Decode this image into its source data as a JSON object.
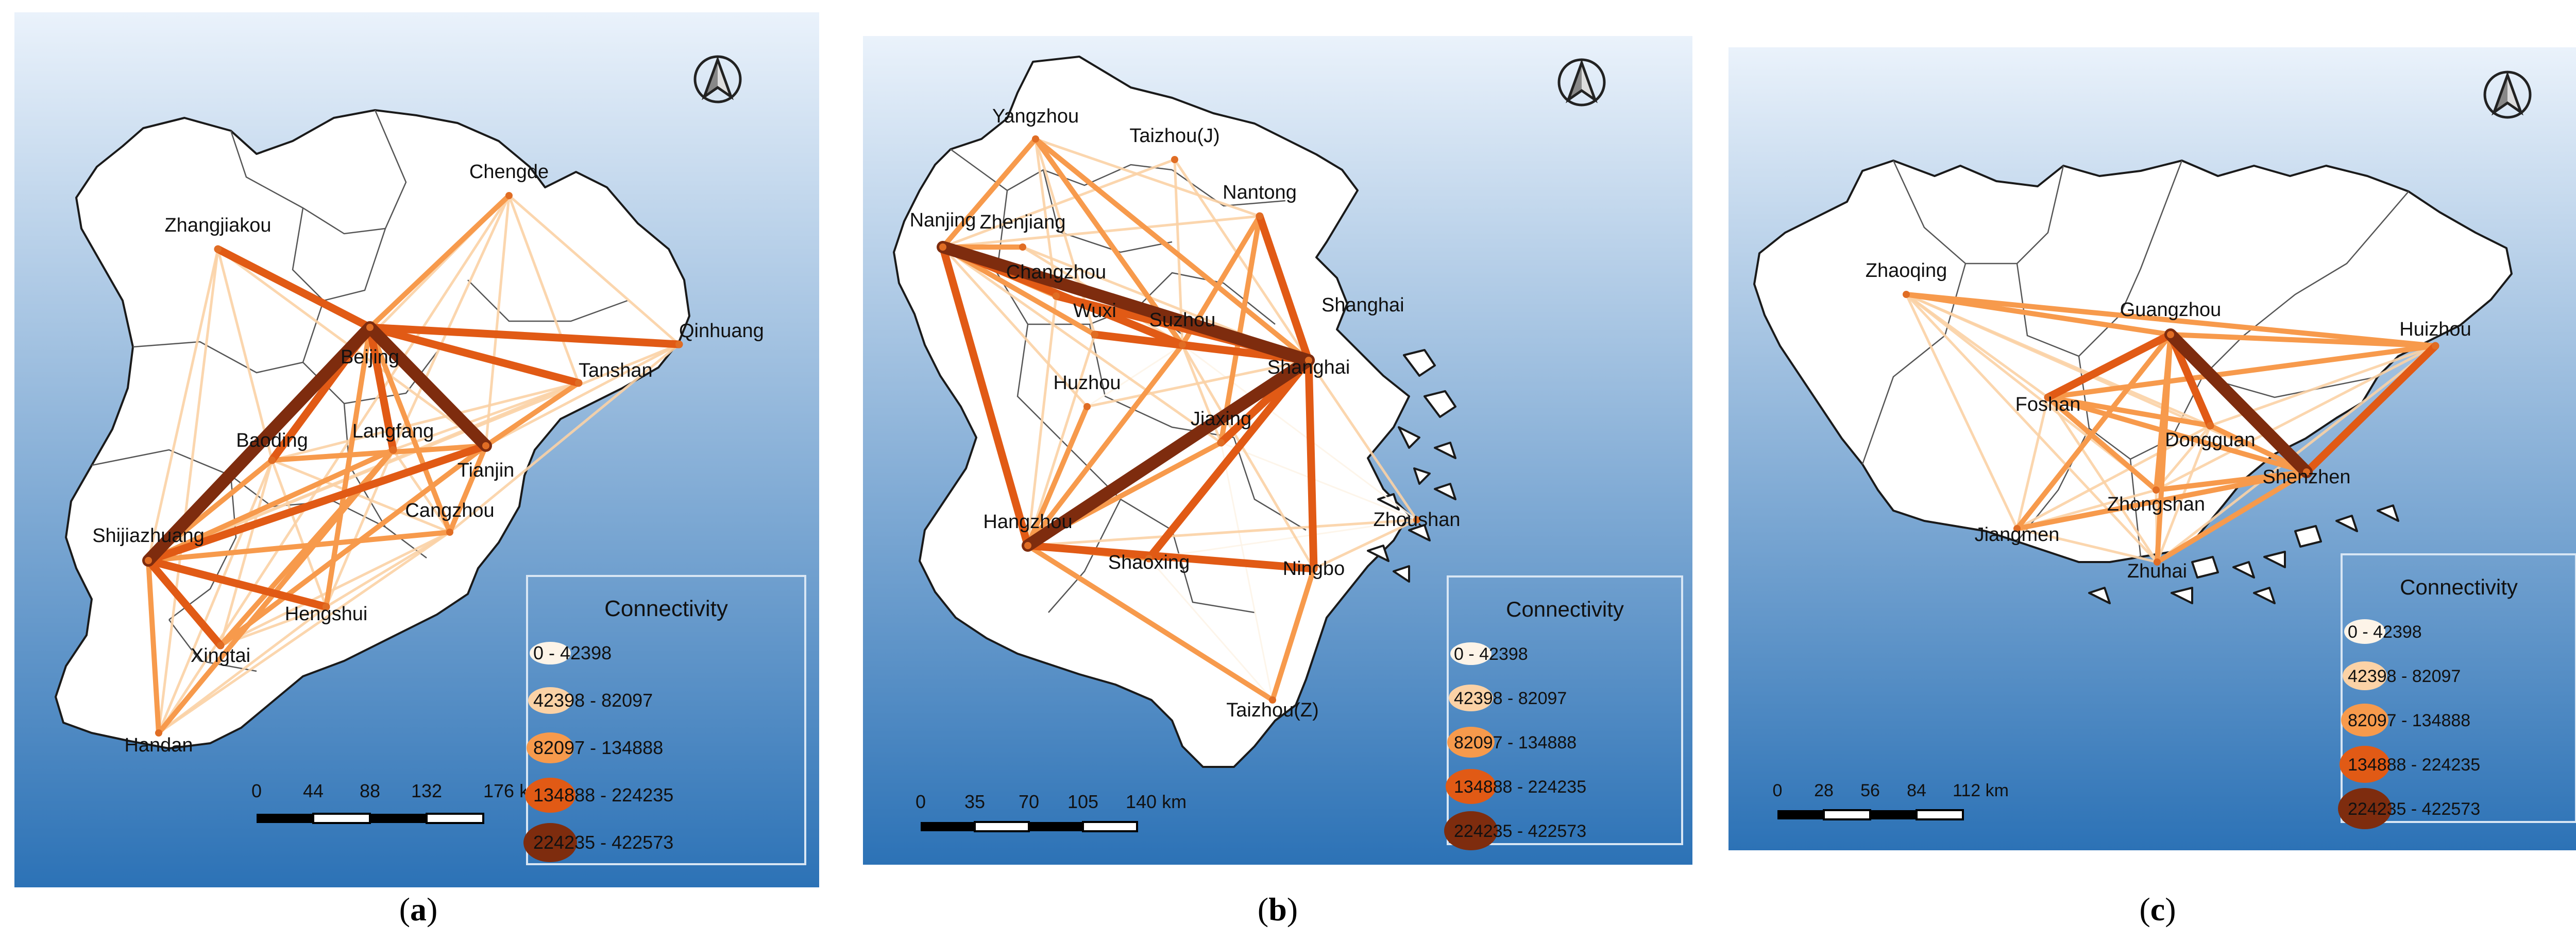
{
  "panels": [
    {
      "caption": "a",
      "cities": [
        {
          "name": "Chengde"
        },
        {
          "name": "Zhangjiakou"
        },
        {
          "name": "Qinhuang"
        },
        {
          "name": "Beijing"
        },
        {
          "name": "Tanshan"
        },
        {
          "name": "Baoding"
        },
        {
          "name": "Langfang"
        },
        {
          "name": "Tianjin"
        },
        {
          "name": "Shijiazhuang"
        },
        {
          "name": "Cangzhou"
        },
        {
          "name": "Hengshui"
        },
        {
          "name": "Xingtai"
        },
        {
          "name": "Handan"
        }
      ],
      "links": [
        {
          "from": "Beijing",
          "to": "Shijiazhuang",
          "class": 4
        },
        {
          "from": "Beijing",
          "to": "Tianjin",
          "class": 4
        },
        {
          "from": "Beijing",
          "to": "Qinhuang",
          "class": 3
        },
        {
          "from": "Beijing",
          "to": "Tanshan",
          "class": 3
        },
        {
          "from": "Beijing",
          "to": "Zhangjiakou",
          "class": 3
        },
        {
          "from": "Beijing",
          "to": "Langfang",
          "class": 3
        },
        {
          "from": "Beijing",
          "to": "Baoding",
          "class": 3
        },
        {
          "from": "Beijing",
          "to": "Hengshui",
          "class": 2
        },
        {
          "from": "Beijing",
          "to": "Cangzhou",
          "class": 2
        },
        {
          "from": "Beijing",
          "to": "Chengde",
          "class": 2
        },
        {
          "from": "Shijiazhuang",
          "to": "Tianjin",
          "class": 3
        },
        {
          "from": "Shijiazhuang",
          "to": "Hengshui",
          "class": 3
        },
        {
          "from": "Shijiazhuang",
          "to": "Xingtai",
          "class": 3
        },
        {
          "from": "Shijiazhuang",
          "to": "Baoding",
          "class": 2
        },
        {
          "from": "Shijiazhuang",
          "to": "Handan",
          "class": 2
        },
        {
          "from": "Shijiazhuang",
          "to": "Cangzhou",
          "class": 2
        },
        {
          "from": "Shijiazhuang",
          "to": "Langfang",
          "class": 2
        },
        {
          "from": "Tianjin",
          "to": "Xingtai",
          "class": 2
        },
        {
          "from": "Tianjin",
          "to": "Cangzhou",
          "class": 2
        },
        {
          "from": "Tianjin",
          "to": "Baoding",
          "class": 2
        },
        {
          "from": "Tianjin",
          "to": "Tanshan",
          "class": 2
        },
        {
          "from": "Handan",
          "to": "Langfang",
          "class": 2
        },
        {
          "from": "Xingtai",
          "to": "Langfang",
          "class": 2
        },
        {
          "from": "Zhangjiakou",
          "to": "Handan",
          "class": 1
        },
        {
          "from": "Zhangjiakou",
          "to": "Shijiazhuang",
          "class": 1
        },
        {
          "from": "Zhangjiakou",
          "to": "Tianjin",
          "class": 1
        },
        {
          "from": "Zhangjiakou",
          "to": "Baoding",
          "class": 1
        },
        {
          "from": "Chengde",
          "to": "Tianjin",
          "class": 1
        },
        {
          "from": "Chengde",
          "to": "Qinhuang",
          "class": 1
        },
        {
          "from": "Chengde",
          "to": "Tanshan",
          "class": 1
        },
        {
          "from": "Chengde",
          "to": "Shijiazhuang",
          "class": 1
        },
        {
          "from": "Chengde",
          "to": "Handan",
          "class": 1
        },
        {
          "from": "Chengde",
          "to": "Langfang",
          "class": 1
        },
        {
          "from": "Qinhuang",
          "to": "Tianjin",
          "class": 1
        },
        {
          "from": "Qinhuang",
          "to": "Shijiazhuang",
          "class": 1
        },
        {
          "from": "Qinhuang",
          "to": "Cangzhou",
          "class": 1
        },
        {
          "from": "Tanshan",
          "to": "Langfang",
          "class": 1
        },
        {
          "from": "Tanshan",
          "to": "Shijiazhuang",
          "class": 1
        },
        {
          "from": "Tanshan",
          "to": "Baoding",
          "class": 1
        },
        {
          "from": "Cangzhou",
          "to": "Xingtai",
          "class": 1
        },
        {
          "from": "Cangzhou",
          "to": "Handan",
          "class": 1
        },
        {
          "from": "Cangzhou",
          "to": "Hengshui",
          "class": 1
        },
        {
          "from": "Cangzhou",
          "to": "Baoding",
          "class": 1
        },
        {
          "from": "Hengshui",
          "to": "Handan",
          "class": 1
        },
        {
          "from": "Hengshui",
          "to": "Baoding",
          "class": 1
        },
        {
          "from": "Hengshui",
          "to": "Xingtai",
          "class": 1
        },
        {
          "from": "Xingtai",
          "to": "Baoding",
          "class": 1
        },
        {
          "from": "Handan",
          "to": "Baoding",
          "class": 1
        },
        {
          "from": "Langfang",
          "to": "Cangzhou",
          "class": 1
        },
        {
          "from": "Langfang",
          "to": "Hengshui",
          "class": 1
        }
      ],
      "scalebar": {
        "ticks": [
          "0",
          "44",
          "88",
          "132",
          "176 km"
        ]
      }
    },
    {
      "caption": "b",
      "cities": [
        {
          "name": "Yangzhou"
        },
        {
          "name": "Taizhou(J)"
        },
        {
          "name": "Nantong"
        },
        {
          "name": "Nanjing"
        },
        {
          "name": "Zhenjiang"
        },
        {
          "name": "Changzhou"
        },
        {
          "name": "Shanghai"
        },
        {
          "name": "Wuxi"
        },
        {
          "name": "Suzhou"
        },
        {
          "name": "Huzhou"
        },
        {
          "name": "Jiaxing"
        },
        {
          "name": "Hangzhou"
        },
        {
          "name": "Zhoushan"
        },
        {
          "name": "Shaoxing"
        },
        {
          "name": "Ningbo"
        },
        {
          "name": "Taizhou(Z)"
        }
      ],
      "extra_labels": [
        {
          "name": "Shanghai"
        },
        {
          "name": "Shanghai"
        }
      ],
      "links": [
        {
          "from": "Nanjing",
          "to": "Shanghai",
          "class": 4
        },
        {
          "from": "Hangzhou",
          "to": "Shanghai",
          "class": 4
        },
        {
          "from": "Shanghai",
          "to": "Suzhou",
          "class": 3
        },
        {
          "from": "Shanghai",
          "to": "Wuxi",
          "class": 3
        },
        {
          "from": "Shanghai",
          "to": "Nantong",
          "class": 3
        },
        {
          "from": "Shanghai",
          "to": "Ningbo",
          "class": 3
        },
        {
          "from": "Shanghai",
          "to": "Jiaxing",
          "class": 3
        },
        {
          "from": "Shanghai",
          "to": "Changzhou",
          "class": 3
        },
        {
          "from": "Shanghai",
          "to": "Shaoxing",
          "class": 3
        },
        {
          "from": "Nanjing",
          "to": "Hangzhou",
          "class": 3
        },
        {
          "from": "Hangzhou",
          "to": "Ningbo",
          "class": 3
        },
        {
          "from": "Nanjing",
          "to": "Suzhou",
          "class": 3
        },
        {
          "from": "Nanjing",
          "to": "Yangzhou",
          "class": 2
        },
        {
          "from": "Nanjing",
          "to": "Zhenjiang",
          "class": 2
        },
        {
          "from": "Nanjing",
          "to": "Wuxi",
          "class": 2
        },
        {
          "from": "Nanjing",
          "to": "Changzhou",
          "class": 2
        },
        {
          "from": "Hangzhou",
          "to": "Suzhou",
          "class": 2
        },
        {
          "from": "Hangzhou",
          "to": "Shaoxing",
          "class": 2
        },
        {
          "from": "Hangzhou",
          "to": "Taizhou(Z)",
          "class": 2
        },
        {
          "from": "Hangzhou",
          "to": "Huzhou",
          "class": 2
        },
        {
          "from": "Hangzhou",
          "to": "Jiaxing",
          "class": 2
        },
        {
          "from": "Yangzhou",
          "to": "Shanghai",
          "class": 2
        },
        {
          "from": "Yangzhou",
          "to": "Suzhou",
          "class": 2
        },
        {
          "from": "Taizhou(Z)",
          "to": "Ningbo",
          "class": 2
        },
        {
          "from": "Nantong",
          "to": "Suzhou",
          "class": 2
        },
        {
          "from": "Nantong",
          "to": "Jiaxing",
          "class": 2
        },
        {
          "from": "Shanghai",
          "to": "Zhoushan",
          "class": 1
        },
        {
          "from": "Shanghai",
          "to": "Huzhou",
          "class": 1
        },
        {
          "from": "Shanghai",
          "to": "Taizhou(J)",
          "class": 1
        },
        {
          "from": "Shanghai",
          "to": "Zhenjiang",
          "class": 1
        },
        {
          "from": "Nanjing",
          "to": "Taizhou(J)",
          "class": 1
        },
        {
          "from": "Nanjing",
          "to": "Nantong",
          "class": 1
        },
        {
          "from": "Nanjing",
          "to": "Huzhou",
          "class": 1
        },
        {
          "from": "Nanjing",
          "to": "Jiaxing",
          "class": 1
        },
        {
          "from": "Yangzhou",
          "to": "Nantong",
          "class": 1
        },
        {
          "from": "Yangzhou",
          "to": "Changzhou",
          "class": 1
        },
        {
          "from": "Yangzhou",
          "to": "Wuxi",
          "class": 1
        },
        {
          "from": "Hangzhou",
          "to": "Wuxi",
          "class": 1
        },
        {
          "from": "Hangzhou",
          "to": "Changzhou",
          "class": 1
        },
        {
          "from": "Hangzhou",
          "to": "Zhoushan",
          "class": 1
        },
        {
          "from": "Ningbo",
          "to": "Suzhou",
          "class": 1
        },
        {
          "from": "Ningbo",
          "to": "Zhoushan",
          "class": 1
        },
        {
          "from": "Ningbo",
          "to": "Shaoxing",
          "class": 1
        },
        {
          "from": "Jiaxing",
          "to": "Suzhou",
          "class": 1
        },
        {
          "from": "Wuxi",
          "to": "Suzhou",
          "class": 1
        },
        {
          "from": "Taizhou(J)",
          "to": "Suzhou",
          "class": 1
        },
        {
          "from": "Zhenjiang",
          "to": "Suzhou",
          "class": 1
        },
        {
          "from": "Zhoushan",
          "to": "Jiaxing",
          "class": 0
        },
        {
          "from": "Zhoushan",
          "to": "Suzhou",
          "class": 0
        },
        {
          "from": "Zhoushan",
          "to": "Shaoxing",
          "class": 0
        },
        {
          "from": "Huzhou",
          "to": "Suzhou",
          "class": 0
        },
        {
          "from": "Taizhou(Z)",
          "to": "Shaoxing",
          "class": 0
        },
        {
          "from": "Taizhou(Z)",
          "to": "Jiaxing",
          "class": 0
        }
      ],
      "scalebar": {
        "ticks": [
          "0",
          "35",
          "70",
          "105",
          "140 km"
        ]
      }
    },
    {
      "caption": "c",
      "cities": [
        {
          "name": "Zhaoqing"
        },
        {
          "name": "Guangzhou"
        },
        {
          "name": "Huizhou"
        },
        {
          "name": "Foshan"
        },
        {
          "name": "Dongguan"
        },
        {
          "name": "Shenzhen"
        },
        {
          "name": "Zhongshan"
        },
        {
          "name": "Jiangmen"
        },
        {
          "name": "Zhuhai"
        }
      ],
      "links": [
        {
          "from": "Guangzhou",
          "to": "Shenzhen",
          "class": 4
        },
        {
          "from": "Guangzhou",
          "to": "Foshan",
          "class": 3
        },
        {
          "from": "Guangzhou",
          "to": "Dongguan",
          "class": 3
        },
        {
          "from": "Guangzhou",
          "to": "Huizhou",
          "class": 2
        },
        {
          "from": "Guangzhou",
          "to": "Zhaoqing",
          "class": 2
        },
        {
          "from": "Guangzhou",
          "to": "Zhongshan",
          "class": 2
        },
        {
          "from": "Guangzhou",
          "to": "Jiangmen",
          "class": 2
        },
        {
          "from": "Guangzhou",
          "to": "Zhuhai",
          "class": 2
        },
        {
          "from": "Shenzhen",
          "to": "Huizhou",
          "class": 3
        },
        {
          "from": "Shenzhen",
          "to": "Foshan",
          "class": 2
        },
        {
          "from": "Shenzhen",
          "to": "Dongguan",
          "class": 2
        },
        {
          "from": "Shenzhen",
          "to": "Zhongshan",
          "class": 2
        },
        {
          "from": "Shenzhen",
          "to": "Zhuhai",
          "class": 2
        },
        {
          "from": "Shenzhen",
          "to": "Jiangmen",
          "class": 2
        },
        {
          "from": "Foshan",
          "to": "Huizhou",
          "class": 2
        },
        {
          "from": "Foshan",
          "to": "Dongguan",
          "class": 2
        },
        {
          "from": "Foshan",
          "to": "Zhongshan",
          "class": 2
        },
        {
          "from": "Zhaoqing",
          "to": "Huizhou",
          "class": 2
        },
        {
          "from": "Zhaoqing",
          "to": "Foshan",
          "class": 1
        },
        {
          "from": "Zhaoqing",
          "to": "Dongguan",
          "class": 1
        },
        {
          "from": "Zhaoqing",
          "to": "Jiangmen",
          "class": 1
        },
        {
          "from": "Zhaoqing",
          "to": "Zhongshan",
          "class": 1
        },
        {
          "from": "Zhaoqing",
          "to": "Zhuhai",
          "class": 1
        },
        {
          "from": "Zhaoqing",
          "to": "Shenzhen",
          "class": 1
        },
        {
          "from": "Jiangmen",
          "to": "Foshan",
          "class": 1
        },
        {
          "from": "Jiangmen",
          "to": "Zhongshan",
          "class": 1
        },
        {
          "from": "Jiangmen",
          "to": "Zhuhai",
          "class": 1
        },
        {
          "from": "Jiangmen",
          "to": "Dongguan",
          "class": 1
        },
        {
          "from": "Zhongshan",
          "to": "Zhuhai",
          "class": 1
        },
        {
          "from": "Zhongshan",
          "to": "Dongguan",
          "class": 1
        },
        {
          "from": "Zhuhai",
          "to": "Foshan",
          "class": 1
        },
        {
          "from": "Zhuhai",
          "to": "Dongguan",
          "class": 1
        },
        {
          "from": "Huizhou",
          "to": "Dongguan",
          "class": 1
        },
        {
          "from": "Huizhou",
          "to": "Zhongshan",
          "class": 1
        },
        {
          "from": "Huizhou",
          "to": "Zhuhai",
          "class": 1
        }
      ],
      "scalebar": {
        "ticks": [
          "0",
          "28",
          "56",
          "84",
          "112 km"
        ]
      }
    }
  ],
  "legend": {
    "title": "Connectivity",
    "classes": [
      {
        "label": "0 - 42398",
        "color": "#fdf4e8"
      },
      {
        "label": "42398 - 82097",
        "color": "#fbd2a6"
      },
      {
        "label": "82097 - 134888",
        "color": "#f79a4c"
      },
      {
        "label": "134888 - 224235",
        "color": "#e15a15"
      },
      {
        "label": "224235 - 422573",
        "color": "#7e2c0e"
      }
    ]
  },
  "colors": {
    "land": "#ffffff",
    "coast": "#1a1a1a",
    "sky_top": "#eaf2fb",
    "sky_bottom": "#2c72b6",
    "node": "#e06d24"
  }
}
